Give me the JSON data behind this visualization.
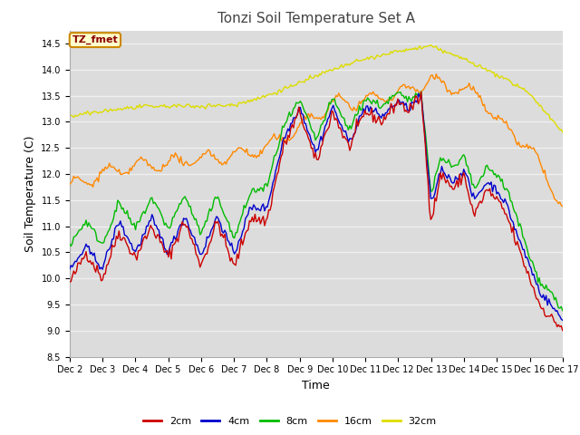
{
  "title": "Tonzi Soil Temperature Set A",
  "ylabel": "Soil Temperature (C)",
  "xlabel": "Time",
  "ylim": [
    8.5,
    14.75
  ],
  "annotation": "TZ_fmet",
  "colors": {
    "2cm": "#cc0000",
    "4cm": "#0000cc",
    "8cm": "#00bb00",
    "16cm": "#ff8800",
    "32cm": "#dddd00"
  },
  "legend_labels": [
    "2cm",
    "4cm",
    "8cm",
    "16cm",
    "32cm"
  ],
  "xtick_labels": [
    "Dec 2",
    "Dec 3",
    "Dec 4",
    "Dec 5",
    "Dec 6",
    "Dec 7",
    "Dec 8",
    "Dec 9",
    "Dec 10",
    "Dec 11",
    "Dec 12",
    "Dec 13",
    "Dec 14",
    "Dec 15",
    "Dec 16",
    "Dec 17"
  ],
  "background_color": "#dcdcdc",
  "fig_background": "#ffffff",
  "grid_color": "#f0f0f0",
  "title_fontsize": 11,
  "tick_fontsize": 7,
  "label_fontsize": 9
}
